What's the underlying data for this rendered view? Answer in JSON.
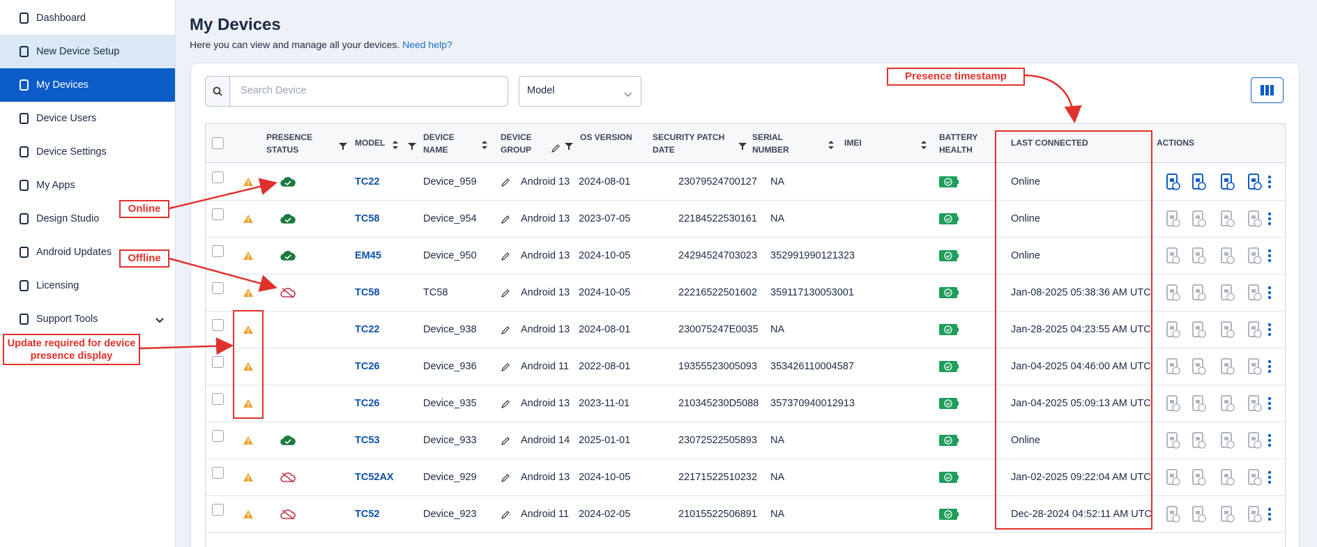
{
  "sidebar": {
    "items": [
      "Dashboard",
      "New Device Setup",
      "My Devices",
      "Device Users",
      "Device Settings",
      "My Apps",
      "Design Studio",
      "Android Updates",
      "Licensing",
      "Support Tools"
    ]
  },
  "header": {
    "title": "My Devices",
    "subtitle": "Here you can view and manage all your devices.",
    "help_link": "Need help?"
  },
  "toolbar": {
    "search_placeholder": "Search Device",
    "model_filter": "Model"
  },
  "table": {
    "columns": [
      "PRESENCE STATUS",
      "MODEL",
      "DEVICE NAME",
      "DEVICE GROUP",
      "OS VERSION",
      "SECURITY PATCH DATE",
      "SERIAL NUMBER",
      "IMEI",
      "BATTERY HEALTH",
      "LAST CONNECTED",
      "ACTIONS"
    ],
    "rows": [
      {
        "presence": "online",
        "model": "TC22",
        "device_name": "Device_959",
        "os": "Android 13",
        "patch": "2024-08-01",
        "serial": "23079524700127",
        "imei": "NA",
        "last_connected": "Online"
      },
      {
        "presence": "online",
        "model": "TC58",
        "device_name": "Device_954",
        "os": "Android 13",
        "patch": "2023-07-05",
        "serial": "22184522530161",
        "imei": "NA",
        "last_connected": "Online"
      },
      {
        "presence": "online",
        "model": "EM45",
        "device_name": "Device_950",
        "os": "Android 13",
        "patch": "2024-10-05",
        "serial": "24294524703023",
        "imei": "352991990121323",
        "last_connected": "Online"
      },
      {
        "presence": "offline",
        "model": "TC58",
        "device_name": "TC58",
        "os": "Android 13",
        "patch": "2024-10-05",
        "serial": "22216522501602",
        "imei": "359117130053001",
        "last_connected": "Jan-08-2025 05:38:36 AM UTC"
      },
      {
        "presence": null,
        "model": "TC22",
        "device_name": "Device_938",
        "os": "Android 13",
        "patch": "2024-08-01",
        "serial": "230075247E0035",
        "imei": "NA",
        "last_connected": "Jan-28-2025 04:23:55 AM UTC"
      },
      {
        "presence": null,
        "model": "TC26",
        "device_name": "Device_936",
        "os": "Android 11",
        "patch": "2022-08-01",
        "serial": "19355523005093",
        "imei": "353426110004587",
        "last_connected": "Jan-04-2025 04:46:00 AM UTC"
      },
      {
        "presence": null,
        "model": "TC26",
        "device_name": "Device_935",
        "os": "Android 13",
        "patch": "2023-11-01",
        "serial": "210345230D5088",
        "imei": "357370940012913",
        "last_connected": "Jan-04-2025 05:09:13 AM UTC"
      },
      {
        "presence": "online",
        "model": "TC53",
        "device_name": "Device_933",
        "os": "Android 14",
        "patch": "2025-01-01",
        "serial": "23072522505893",
        "imei": "NA",
        "last_connected": "Online"
      },
      {
        "presence": "offline",
        "model": "TC52AX",
        "device_name": "Device_929",
        "os": "Android 13",
        "patch": "2024-10-05",
        "serial": "22171522510232",
        "imei": "NA",
        "last_connected": "Jan-02-2025 09:22:04 AM UTC"
      },
      {
        "presence": "offline",
        "model": "TC52",
        "device_name": "Device_923",
        "os": "Android 11",
        "patch": "2024-02-05",
        "serial": "21015522506891",
        "imei": "NA",
        "last_connected": "Dec-28-2024 04:52:11 AM UTC"
      }
    ]
  },
  "annotations": {
    "online": "Online",
    "offline": "Offline",
    "update": "Update required for device presence display",
    "timestamp": "Presence timestamp"
  }
}
